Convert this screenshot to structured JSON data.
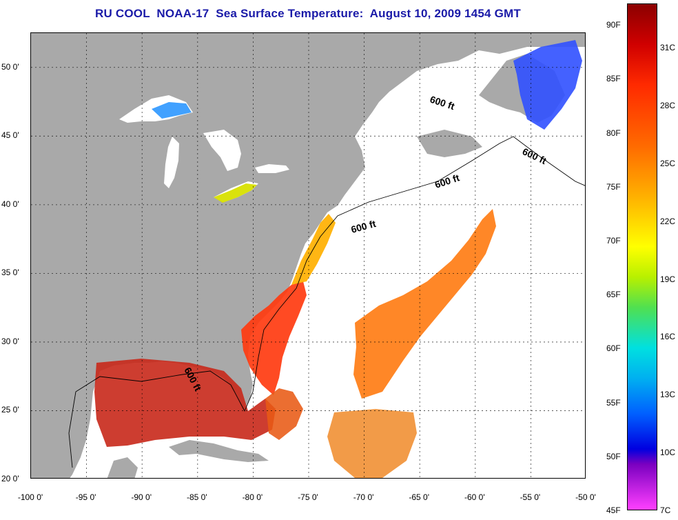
{
  "title": "RU COOL  NOAA-17  Sea Surface Temperature:  August 10, 2009 1454 GMT",
  "map": {
    "lon_range": [
      -100,
      -50
    ],
    "lat_range": [
      20,
      52.5
    ],
    "x_ticks": [
      {
        "value": -100,
        "label": "-100 0'"
      },
      {
        "value": -95,
        "label": "-95 0'"
      },
      {
        "value": -90,
        "label": "-90 0'"
      },
      {
        "value": -85,
        "label": "-85 0'"
      },
      {
        "value": -80,
        "label": "-80 0'"
      },
      {
        "value": -75,
        "label": "-75 0'"
      },
      {
        "value": -70,
        "label": "-70 0'"
      },
      {
        "value": -65,
        "label": "-65 0'"
      },
      {
        "value": -60,
        "label": "-60 0'"
      },
      {
        "value": -55,
        "label": "-55 0'"
      },
      {
        "value": -50,
        "label": "-50 0'"
      }
    ],
    "y_ticks": [
      {
        "value": 50,
        "label": "50 0'"
      },
      {
        "value": 45,
        "label": "45 0'"
      },
      {
        "value": 40,
        "label": "40 0'"
      },
      {
        "value": 35,
        "label": "35 0'"
      },
      {
        "value": 30,
        "label": "30 0'"
      },
      {
        "value": 25,
        "label": "25 0'"
      },
      {
        "value": 20,
        "label": "20 0'"
      }
    ],
    "contour_labels": [
      "600 ft",
      "600 ft",
      "600 ft",
      "600 ft",
      "600 ft"
    ],
    "colors": {
      "land": "#a9a9a9",
      "water": "#ffffff",
      "grid": "#000000"
    }
  },
  "colorbar": {
    "fahrenheit": [
      "90F",
      "85F",
      "80F",
      "75F",
      "70F",
      "65F",
      "60F",
      "55F",
      "50F",
      "45F"
    ],
    "celsius": [
      "31C",
      "28C",
      "25C",
      "22C",
      "19C",
      "16C",
      "13C",
      "10C",
      "7C"
    ],
    "f_range": [
      45,
      92
    ],
    "c_range": [
      7,
      33.3
    ]
  }
}
